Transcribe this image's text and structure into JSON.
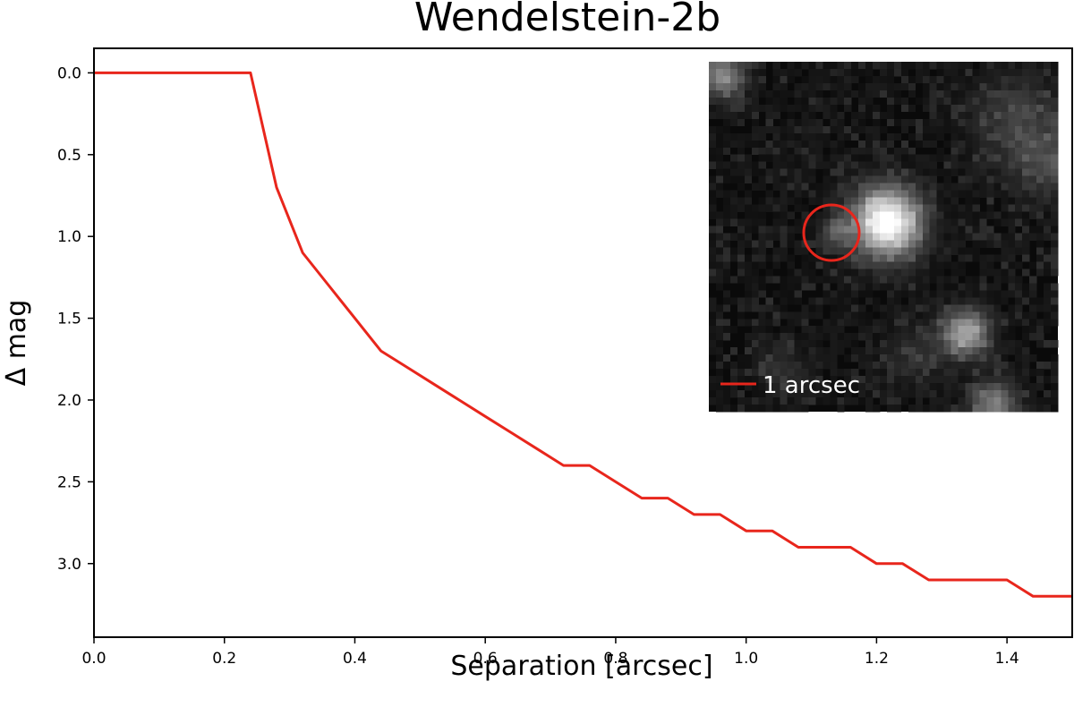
{
  "chart_data": {
    "type": "line",
    "title": "Wendelstein-2b",
    "xlabel": "Separation [arcsec]",
    "ylabel": "Δ mag",
    "xlim": [
      0.0,
      1.5
    ],
    "ylim": [
      3.45,
      -0.15
    ],
    "y_inverted": true,
    "grid": false,
    "xticks": [
      "0.0",
      "0.2",
      "0.4",
      "0.6",
      "0.8",
      "1.0",
      "1.2",
      "1.4"
    ],
    "yticks": [
      "0.0",
      "0.5",
      "1.0",
      "1.5",
      "2.0",
      "2.5",
      "3.0"
    ],
    "series": [
      {
        "color": "#e8261c",
        "x": [
          0.0,
          0.24,
          0.28,
          0.32,
          0.36,
          0.4,
          0.44,
          0.48,
          0.52,
          0.56,
          0.6,
          0.64,
          0.68,
          0.72,
          0.76,
          0.8,
          0.84,
          0.88,
          0.92,
          0.96,
          1.0,
          1.04,
          1.08,
          1.12,
          1.16,
          1.2,
          1.24,
          1.28,
          1.32,
          1.36,
          1.4,
          1.44,
          1.48,
          1.5
        ],
        "y": [
          0.0,
          0.0,
          0.7,
          1.1,
          1.3,
          1.5,
          1.7,
          1.8,
          1.9,
          2.0,
          2.1,
          2.2,
          2.3,
          2.4,
          2.4,
          2.5,
          2.6,
          2.6,
          2.7,
          2.7,
          2.8,
          2.8,
          2.9,
          2.9,
          2.9,
          3.0,
          3.0,
          3.1,
          3.1,
          3.1,
          3.1,
          3.2,
          3.2,
          3.2
        ]
      }
    ],
    "inset": {
      "kind": "image",
      "placement": "top-right",
      "scale_bar_label": "1 arcsec",
      "scale_bar_color": "#e8261c",
      "circle_color": "#e8261c"
    }
  }
}
